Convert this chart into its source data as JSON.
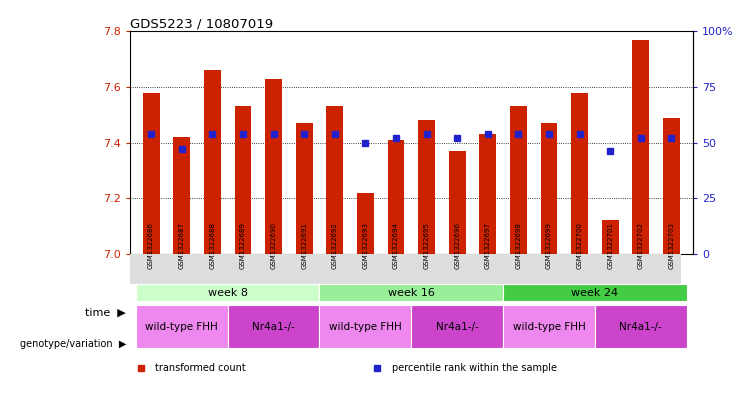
{
  "title": "GDS5223 / 10807019",
  "samples": [
    "GSM1322686",
    "GSM1322687",
    "GSM1322688",
    "GSM1322689",
    "GSM1322690",
    "GSM1322691",
    "GSM1322692",
    "GSM1322693",
    "GSM1322694",
    "GSM1322695",
    "GSM1322696",
    "GSM1322697",
    "GSM1322698",
    "GSM1322699",
    "GSM1322700",
    "GSM1322701",
    "GSM1322702",
    "GSM1322703"
  ],
  "transformed_count": [
    7.58,
    7.42,
    7.66,
    7.53,
    7.63,
    7.47,
    7.53,
    7.22,
    7.41,
    7.48,
    7.37,
    7.43,
    7.53,
    7.47,
    7.58,
    7.12,
    7.77,
    7.49
  ],
  "percentile_rank": [
    54,
    47,
    54,
    54,
    54,
    54,
    54,
    50,
    52,
    54,
    52,
    54,
    54,
    54,
    54,
    46,
    52,
    52
  ],
  "ylim_left": [
    7.0,
    7.8
  ],
  "ylim_right": [
    0,
    100
  ],
  "yticks_left": [
    7.0,
    7.2,
    7.4,
    7.6,
    7.8
  ],
  "yticks_right": [
    0,
    25,
    50,
    75,
    100
  ],
  "bar_color": "#cc2200",
  "dot_color": "#2222cc",
  "time_groups": [
    {
      "label": "week 8",
      "start": 0,
      "end": 6,
      "color": "#ccffcc"
    },
    {
      "label": "week 16",
      "start": 6,
      "end": 12,
      "color": "#99ee99"
    },
    {
      "label": "week 24",
      "start": 12,
      "end": 18,
      "color": "#44cc44"
    }
  ],
  "genotype_groups": [
    {
      "label": "wild-type FHH",
      "start": 0,
      "end": 3,
      "color": "#ee88ee"
    },
    {
      "label": "Nr4a1-/-",
      "start": 3,
      "end": 6,
      "color": "#cc44cc"
    },
    {
      "label": "wild-type FHH",
      "start": 6,
      "end": 9,
      "color": "#ee88ee"
    },
    {
      "label": "Nr4a1-/-",
      "start": 9,
      "end": 12,
      "color": "#cc44cc"
    },
    {
      "label": "wild-type FHH",
      "start": 12,
      "end": 15,
      "color": "#ee88ee"
    },
    {
      "label": "Nr4a1-/-",
      "start": 15,
      "end": 18,
      "color": "#cc44cc"
    }
  ],
  "left_tick_color": "#cc2200",
  "right_tick_color": "#2222cc",
  "legend_items": [
    {
      "label": "transformed count",
      "color": "#cc2200"
    },
    {
      "label": "percentile rank within the sample",
      "color": "#2222cc"
    }
  ],
  "label_time": "time",
  "label_geno": "genotype/variation",
  "arrow": "▶"
}
